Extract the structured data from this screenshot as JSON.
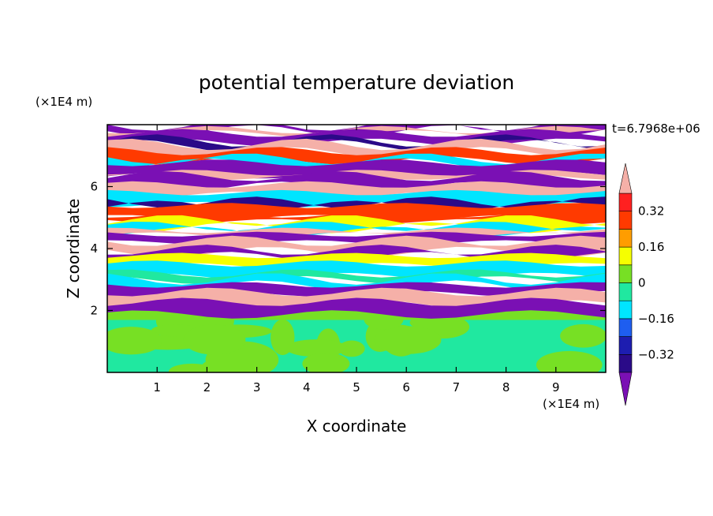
{
  "chart_data": {
    "type": "heatmap",
    "title": "potential temperature deviation",
    "time_label": "t=6.7968e+06",
    "xlabel": "X coordinate",
    "ylabel": "Z coordinate",
    "x_unit": "(×1E4 m)",
    "y_unit": "(×1E4 m)",
    "xlim": [
      0,
      10
    ],
    "ylim": [
      0,
      8
    ],
    "x_ticks": [
      1,
      2,
      3,
      4,
      5,
      6,
      7,
      8,
      9
    ],
    "y_ticks": [
      2,
      4,
      6
    ],
    "colorbar": {
      "levels": [
        -0.4,
        -0.32,
        -0.24,
        -0.16,
        -0.08,
        0,
        0.08,
        0.16,
        0.24,
        0.32,
        0.4
      ],
      "tick_labels": [
        "0.32",
        "0.16",
        "0",
        "−0.16",
        "−0.32"
      ],
      "tick_values": [
        0.32,
        0.16,
        0,
        -0.16,
        -0.32
      ],
      "colors": [
        "#2a0a88",
        "#1d1db0",
        "#1e5ef0",
        "#00e5ff",
        "#20e8a0",
        "#77e024",
        "#f6ff00",
        "#ff9d00",
        "#ff3a00",
        "#ff2020"
      ],
      "under_color": "#7a10b4",
      "over_color": "#f5b0a8"
    },
    "bands": [
      {
        "z_from": 0,
        "z_to": 2,
        "value": 0.0
      },
      {
        "z_from": 2,
        "z_to": 8,
        "value": "alternating −0.4 … +0.4 stratified layers"
      }
    ]
  }
}
